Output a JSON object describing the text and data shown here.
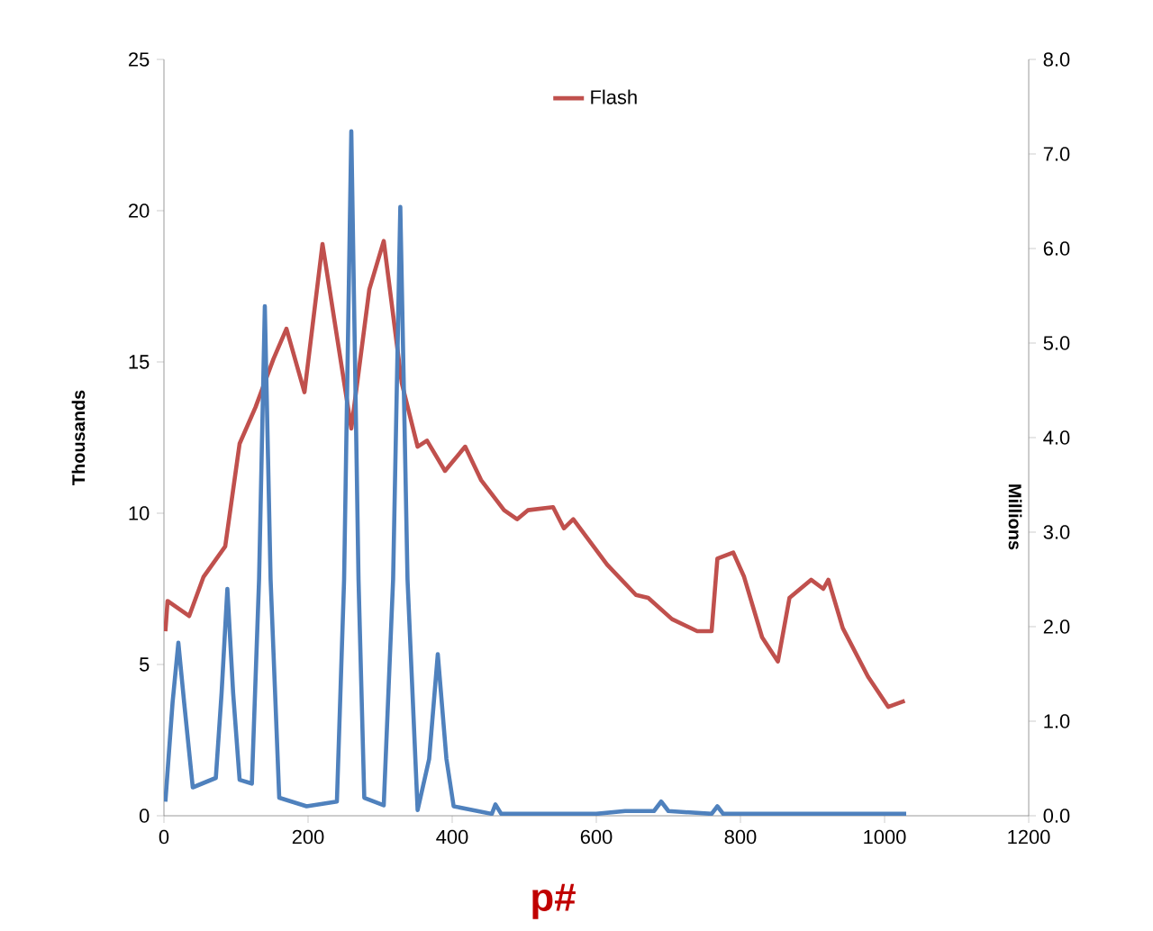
{
  "chart_data": {
    "type": "line",
    "xlabel": "p#",
    "ylabel": "Thousands",
    "y2label": "Millions",
    "xlim": [
      0,
      1200
    ],
    "xticks": [
      0,
      200,
      400,
      600,
      800,
      1000,
      1200
    ],
    "ylim": [
      0,
      25
    ],
    "yticks": [
      0,
      5,
      10,
      15,
      20,
      25
    ],
    "y2lim": [
      0,
      8
    ],
    "y2ticks": [
      {
        "value": 0,
        "label": "0.0"
      },
      {
        "value": 1,
        "label": "1.0"
      },
      {
        "value": 2,
        "label": "2.0"
      },
      {
        "value": 3,
        "label": "3.0"
      },
      {
        "value": 4,
        "label": "4.0"
      },
      {
        "value": 5,
        "label": "5.0"
      },
      {
        "value": 6,
        "label": "6.0"
      },
      {
        "value": 7,
        "label": "7.0"
      },
      {
        "value": 8,
        "label": "8.0"
      }
    ],
    "legend": "top",
    "grid": false,
    "marker": "none",
    "line_style": "solid",
    "series": [
      {
        "name": "Flash",
        "color": "#c0504d",
        "x": [
          2,
          5,
          35,
          55,
          85,
          105,
          127,
          152,
          170,
          195,
          220,
          260,
          285,
          305,
          330,
          352,
          365,
          390,
          418,
          440,
          472,
          490,
          505,
          540,
          555,
          568,
          615,
          655,
          672,
          705,
          740,
          760,
          768,
          790,
          805,
          830,
          852,
          868,
          898,
          915,
          922,
          942,
          977,
          1005,
          1028
        ],
        "values": [
          6.1,
          7.1,
          6.6,
          7.9,
          8.9,
          12.3,
          13.5,
          15.1,
          16.1,
          14.0,
          18.9,
          12.8,
          17.4,
          19.0,
          14.3,
          12.2,
          12.4,
          11.4,
          12.2,
          11.1,
          10.1,
          9.8,
          10.1,
          10.2,
          9.5,
          9.8,
          8.3,
          7.3,
          7.2,
          6.5,
          6.1,
          6.1,
          8.5,
          8.7,
          7.9,
          5.9,
          5.1,
          7.2,
          7.8,
          7.5,
          7.8,
          6.2,
          4.6,
          3.6,
          3.8
        ]
      },
      {
        "color": "#4f81bd",
        "axis": "y2",
        "x": [
          2,
          12,
          20,
          28,
          40,
          72,
          80,
          88,
          96,
          105,
          122,
          132,
          140,
          148,
          160,
          198,
          240,
          250,
          260,
          270,
          278,
          305,
          318,
          328,
          338,
          352,
          368,
          380,
          392,
          402,
          455,
          460,
          468,
          600,
          640,
          680,
          690,
          700,
          760,
          768,
          776,
          1030
        ],
        "values": [
          0.15,
          1.2,
          1.83,
          1.2,
          0.3,
          0.4,
          1.3,
          2.4,
          1.3,
          0.38,
          0.34,
          2.5,
          5.39,
          2.5,
          0.19,
          0.1,
          0.15,
          2.5,
          7.24,
          2.5,
          0.19,
          0.11,
          2.5,
          6.44,
          2.5,
          0.06,
          0.6,
          1.71,
          0.6,
          0.1,
          0.02,
          0.12,
          0.02,
          0.02,
          0.05,
          0.05,
          0.15,
          0.05,
          0.02,
          0.1,
          0.02,
          0.02
        ]
      }
    ]
  }
}
